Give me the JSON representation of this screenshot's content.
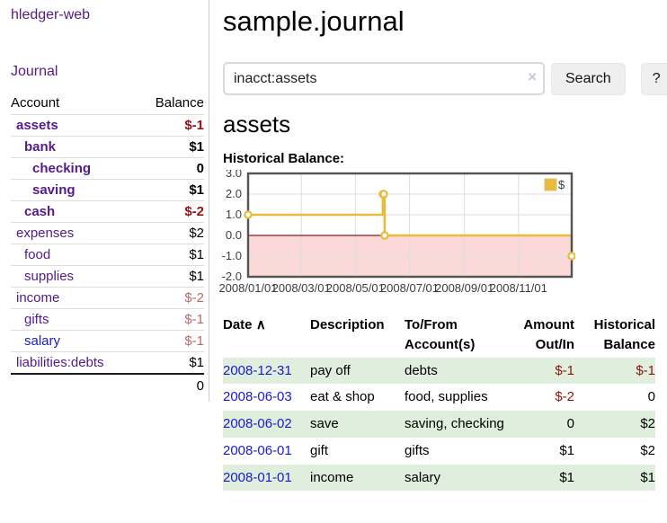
{
  "app": {
    "title": "hledger-web"
  },
  "sidebar": {
    "journal_link": "Journal",
    "accounts_table": {
      "account_header": "Account",
      "balance_header": "Balance",
      "rows": [
        {
          "name": "assets",
          "indent": 0,
          "bold": true,
          "link_color": "purple",
          "balance": "$-1",
          "balance_style": "neg-strong"
        },
        {
          "name": "bank",
          "indent": 1,
          "bold": true,
          "link_color": "purple",
          "balance": "$1",
          "balance_style": ""
        },
        {
          "name": "checking",
          "indent": 2,
          "bold": true,
          "link_color": "purple",
          "balance": "0",
          "balance_style": ""
        },
        {
          "name": "saving",
          "indent": 2,
          "bold": true,
          "link_color": "purple",
          "balance": "$1",
          "balance_style": ""
        },
        {
          "name": "cash",
          "indent": 1,
          "bold": true,
          "link_color": "purple",
          "balance": "$-2",
          "balance_style": "neg-strong"
        },
        {
          "name": "expenses",
          "indent": 0,
          "bold": false,
          "link_color": "purple",
          "balance": "$2",
          "balance_style": ""
        },
        {
          "name": "food",
          "indent": 1,
          "bold": false,
          "link_color": "purple",
          "balance": "$1",
          "balance_style": ""
        },
        {
          "name": "supplies",
          "indent": 1,
          "bold": false,
          "link_color": "purple",
          "balance": "$1",
          "balance_style": ""
        },
        {
          "name": "income",
          "indent": 0,
          "bold": false,
          "link_color": "purple",
          "balance": "$-2",
          "balance_style": "neg-soft"
        },
        {
          "name": "gifts",
          "indent": 1,
          "bold": false,
          "link_color": "purple",
          "balance": "$-1",
          "balance_style": "neg-soft"
        },
        {
          "name": "salary",
          "indent": 1,
          "bold": false,
          "link_color": "blue",
          "balance": "$-1",
          "balance_style": "neg-soft"
        },
        {
          "name": "liabilities:debts",
          "indent": 0,
          "bold": false,
          "link_color": "purple",
          "balance": "$1",
          "balance_style": ""
        }
      ],
      "total": "0"
    }
  },
  "main": {
    "title": "sample.journal",
    "search": {
      "value": "inacct:assets",
      "clear_icon": "×",
      "button_label": "Search",
      "help_label": "?"
    },
    "account_heading": "assets",
    "chart_heading": "Historical Balance:"
  },
  "chart_data": {
    "type": "line",
    "title": "Historical Balance:",
    "step": true,
    "legend": [
      {
        "label": "$",
        "color": "#E8BB3C"
      }
    ],
    "legend_position": "top-right",
    "series": [
      {
        "name": "$",
        "color": "#E8BB3C",
        "points": [
          [
            "2008-01-01",
            1
          ],
          [
            "2008-06-01",
            2
          ],
          [
            "2008-06-02",
            2
          ],
          [
            "2008-06-03",
            0
          ],
          [
            "2008-12-31",
            -1
          ]
        ]
      }
    ],
    "x_range": [
      "2008-01-01",
      "2008-12-31"
    ],
    "x_tick_dates": [
      "2008-01-01",
      "2008-03-01",
      "2008-05-01",
      "2008-07-01",
      "2008-09-01",
      "2008-11-01"
    ],
    "x_tick_labels": [
      "2008/01/01",
      "2008/03/01",
      "2008/05/01",
      "2008/07/01",
      "2008/09/01",
      "2008/11/01"
    ],
    "y_ticks": [
      3,
      2,
      1,
      0,
      -1,
      -2
    ],
    "y_tick_labels": [
      "3.0",
      "2.0",
      "1.0",
      "0.0",
      "-1.0",
      "-2.0"
    ],
    "ylim": [
      -2,
      3
    ],
    "grid": true,
    "negative_region_color": "#FBD9D9",
    "zero_line_color": "#8B1A1A"
  },
  "register_table": {
    "headers": {
      "date": "Date",
      "sort_icon": "∧",
      "description": "Description",
      "accounts": "To/From Account(s)",
      "amount": "Amount Out/In",
      "balance": "Historical Balance"
    },
    "rows": [
      {
        "date": "2008-12-31",
        "description": "pay off",
        "accounts": "debts",
        "amount": "$-1",
        "amount_neg": true,
        "balance": "$-1",
        "balance_neg": true,
        "shade": true
      },
      {
        "date": "2008-06-03",
        "description": "eat & shop",
        "accounts": "food, supplies",
        "amount": "$-2",
        "amount_neg": true,
        "balance": "0",
        "balance_neg": false,
        "shade": false
      },
      {
        "date": "2008-06-02",
        "description": "save",
        "accounts": "saving, checking",
        "amount": "0",
        "amount_neg": false,
        "balance": "$2",
        "balance_neg": false,
        "shade": true
      },
      {
        "date": "2008-06-01",
        "description": "gift",
        "accounts": "gifts",
        "amount": "$1",
        "amount_neg": false,
        "balance": "$2",
        "balance_neg": false,
        "shade": false
      },
      {
        "date": "2008-01-01",
        "description": "income",
        "accounts": "salary",
        "amount": "$1",
        "amount_neg": false,
        "balance": "$1",
        "balance_neg": false,
        "shade": true
      }
    ]
  }
}
